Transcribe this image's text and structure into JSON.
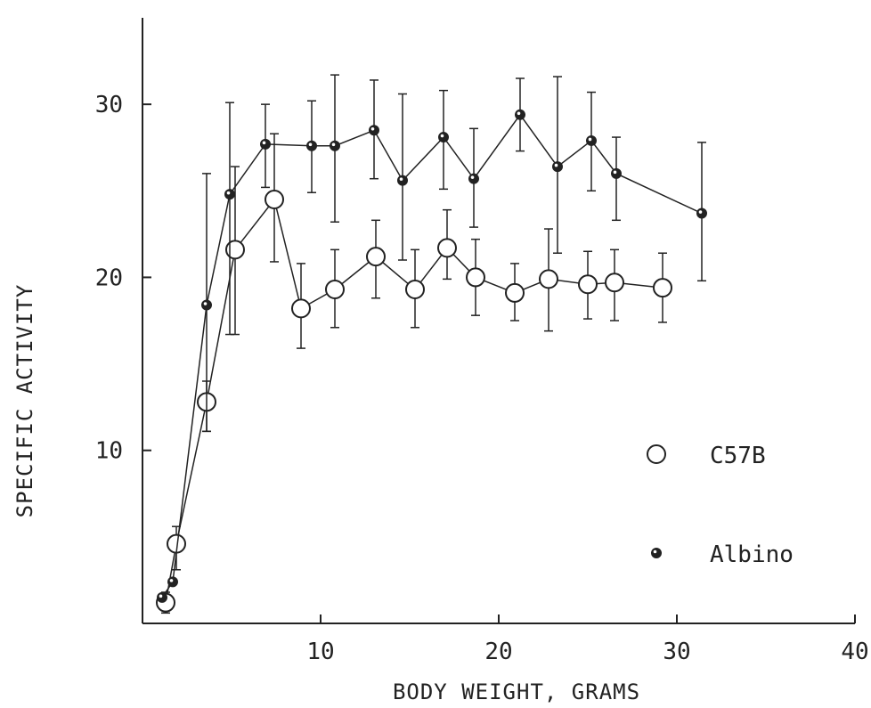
{
  "chart_data": {
    "type": "line",
    "title": "",
    "xlabel": "BODY WEIGHT, GRAMS",
    "ylabel": "SPECIFIC ACTIVITY",
    "xlim": [
      0,
      40
    ],
    "ylim": [
      0,
      35
    ],
    "xticks": [
      10,
      20,
      30,
      40
    ],
    "yticks": [
      10,
      20,
      30
    ],
    "grid": false,
    "legend_position": "right",
    "colors": {
      "ink": "#222222",
      "background": "#ffffff"
    },
    "series": [
      {
        "name": "C57B",
        "marker": "open-circle",
        "points": [
          {
            "x": 1.3,
            "y": 1.2,
            "yerr_up": 0.6,
            "yerr_down": 0.6
          },
          {
            "x": 1.9,
            "y": 4.6,
            "yerr_up": 1.0,
            "yerr_down": 1.5
          },
          {
            "x": 3.6,
            "y": 12.8,
            "yerr_up": 1.2,
            "yerr_down": 1.7
          },
          {
            "x": 5.2,
            "y": 21.6,
            "yerr_up": 4.8,
            "yerr_down": 4.9
          },
          {
            "x": 7.4,
            "y": 24.5,
            "yerr_up": 3.8,
            "yerr_down": 3.6
          },
          {
            "x": 8.9,
            "y": 18.2,
            "yerr_up": 2.6,
            "yerr_down": 2.3
          },
          {
            "x": 10.8,
            "y": 19.3,
            "yerr_up": 2.3,
            "yerr_down": 2.2
          },
          {
            "x": 13.1,
            "y": 21.2,
            "yerr_up": 2.1,
            "yerr_down": 2.4
          },
          {
            "x": 15.3,
            "y": 19.3,
            "yerr_up": 2.3,
            "yerr_down": 2.2
          },
          {
            "x": 17.1,
            "y": 21.7,
            "yerr_up": 2.2,
            "yerr_down": 1.8
          },
          {
            "x": 18.7,
            "y": 20.0,
            "yerr_up": 2.2,
            "yerr_down": 2.2
          },
          {
            "x": 20.9,
            "y": 19.1,
            "yerr_up": 1.7,
            "yerr_down": 1.6
          },
          {
            "x": 22.8,
            "y": 19.9,
            "yerr_up": 2.9,
            "yerr_down": 3.0
          },
          {
            "x": 25.0,
            "y": 19.6,
            "yerr_up": 1.9,
            "yerr_down": 2.0
          },
          {
            "x": 26.5,
            "y": 19.7,
            "yerr_up": 1.9,
            "yerr_down": 2.2
          },
          {
            "x": 29.2,
            "y": 19.4,
            "yerr_up": 2.0,
            "yerr_down": 2.0
          }
        ]
      },
      {
        "name": "Albino",
        "marker": "filled-dot",
        "points": [
          {
            "x": 1.1,
            "y": 1.5,
            "yerr_up": 0.0,
            "yerr_down": 0.0
          },
          {
            "x": 1.7,
            "y": 2.4,
            "yerr_up": 0.0,
            "yerr_down": 0.0
          },
          {
            "x": 3.6,
            "y": 18.4,
            "yerr_up": 7.6,
            "yerr_down": 7.3
          },
          {
            "x": 4.9,
            "y": 24.8,
            "yerr_up": 5.3,
            "yerr_down": 8.1
          },
          {
            "x": 6.9,
            "y": 27.7,
            "yerr_up": 2.3,
            "yerr_down": 2.5
          },
          {
            "x": 9.5,
            "y": 27.6,
            "yerr_up": 2.6,
            "yerr_down": 2.7
          },
          {
            "x": 10.8,
            "y": 27.6,
            "yerr_up": 4.1,
            "yerr_down": 4.4
          },
          {
            "x": 13.0,
            "y": 28.5,
            "yerr_up": 2.9,
            "yerr_down": 2.8
          },
          {
            "x": 14.6,
            "y": 25.6,
            "yerr_up": 5.0,
            "yerr_down": 4.6
          },
          {
            "x": 16.9,
            "y": 28.1,
            "yerr_up": 2.7,
            "yerr_down": 3.0
          },
          {
            "x": 18.6,
            "y": 25.7,
            "yerr_up": 2.9,
            "yerr_down": 2.8
          },
          {
            "x": 21.2,
            "y": 29.4,
            "yerr_up": 2.1,
            "yerr_down": 2.1
          },
          {
            "x": 23.3,
            "y": 26.4,
            "yerr_up": 5.2,
            "yerr_down": 5.0
          },
          {
            "x": 25.2,
            "y": 27.9,
            "yerr_up": 2.8,
            "yerr_down": 2.9
          },
          {
            "x": 26.6,
            "y": 26.0,
            "yerr_up": 2.1,
            "yerr_down": 2.7
          },
          {
            "x": 31.4,
            "y": 23.7,
            "yerr_up": 4.1,
            "yerr_down": 3.9
          }
        ]
      }
    ],
    "legend": [
      {
        "label": "C57B",
        "marker": "open-circle"
      },
      {
        "label": "Albino",
        "marker": "filled-dot"
      }
    ]
  }
}
